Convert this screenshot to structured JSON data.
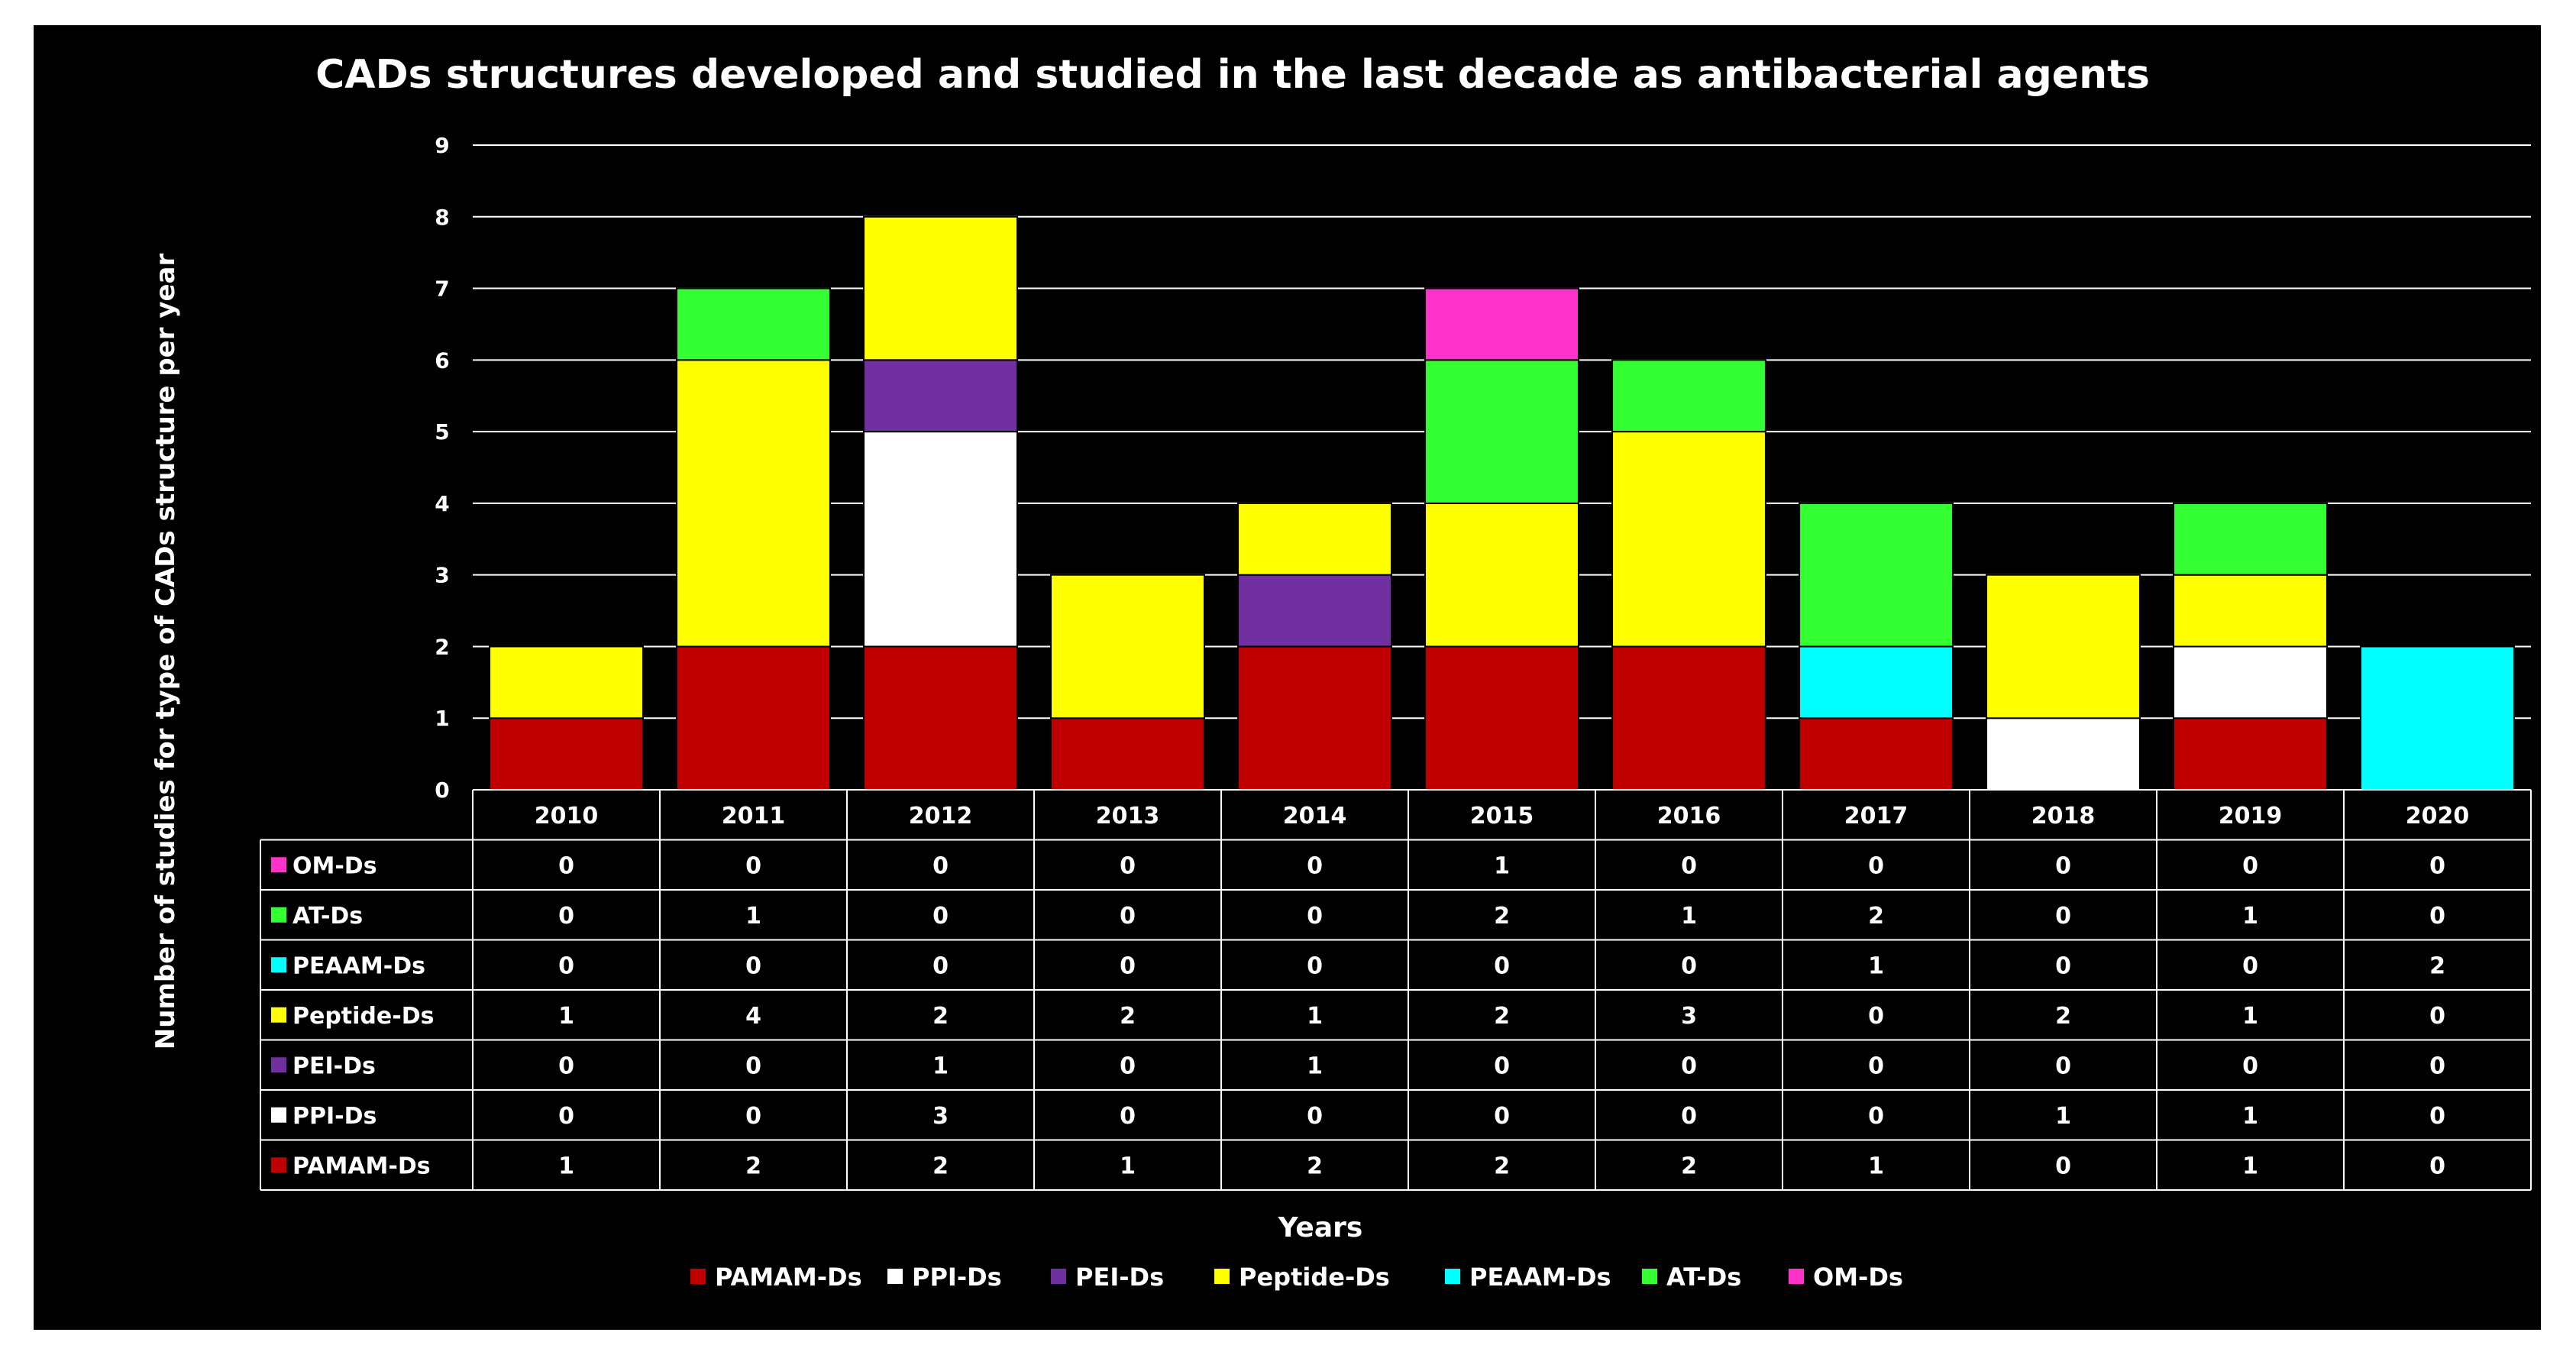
{
  "chart_data": {
    "type": "bar",
    "stacked": true,
    "title": "CADs structures developed and studied in the last decade as antibacterial agents",
    "xlabel": "Years",
    "ylabel": "Number of studies for type of CADs structure per year",
    "ylim": [
      0,
      9
    ],
    "yticks": [
      "0",
      "1",
      "2",
      "3",
      "4",
      "5",
      "6",
      "7",
      "8",
      "9"
    ],
    "grid": true,
    "legend_position": "bottom",
    "categories": [
      "2010",
      "2011",
      "2012",
      "2013",
      "2014",
      "2015",
      "2016",
      "2017",
      "2018",
      "2019",
      "2020"
    ],
    "series": [
      {
        "name": "PAMAM-Ds",
        "color": "#c00000",
        "values": [
          1,
          2,
          2,
          1,
          2,
          2,
          2,
          1,
          0,
          1,
          0
        ]
      },
      {
        "name": "PPI-Ds",
        "color": "#ffffff",
        "values": [
          0,
          0,
          3,
          0,
          0,
          0,
          0,
          0,
          1,
          1,
          0
        ]
      },
      {
        "name": "PEI-Ds",
        "color": "#7030a0",
        "values": [
          0,
          0,
          1,
          0,
          1,
          0,
          0,
          0,
          0,
          0,
          0
        ]
      },
      {
        "name": "Peptide-Ds",
        "color": "#ffff00",
        "values": [
          1,
          4,
          2,
          2,
          1,
          2,
          3,
          0,
          2,
          1,
          0
        ]
      },
      {
        "name": "PEAAM-Ds",
        "color": "#00ffff",
        "values": [
          0,
          0,
          0,
          0,
          0,
          0,
          0,
          1,
          0,
          0,
          2
        ]
      },
      {
        "name": "AT-Ds",
        "color": "#33ff33",
        "values": [
          0,
          1,
          0,
          0,
          0,
          2,
          1,
          2,
          0,
          1,
          0
        ]
      },
      {
        "name": "OM-Ds",
        "color": "#ff33cc",
        "values": [
          0,
          0,
          0,
          0,
          0,
          1,
          0,
          0,
          0,
          0,
          0
        ]
      }
    ],
    "data_table": {
      "row_order": [
        "OM-Ds",
        "AT-Ds",
        "PEAAM-Ds",
        "Peptide-Ds",
        "PEI-Ds",
        "PPI-Ds",
        "PAMAM-Ds"
      ]
    }
  }
}
